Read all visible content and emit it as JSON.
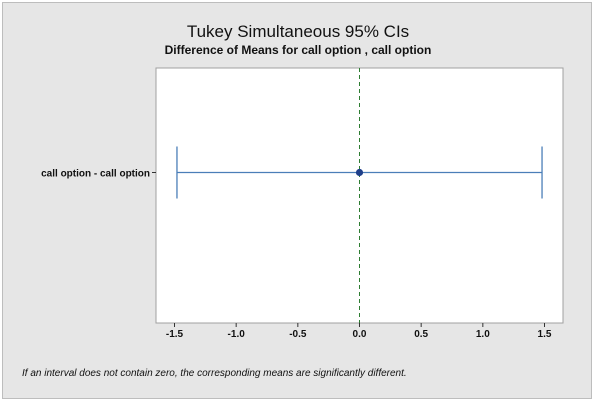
{
  "chart_data": {
    "type": "interval",
    "title": "Tukey Simultaneous 95% CIs",
    "subtitle": "Difference of Means for call option , call option",
    "categories": [
      "call option  - call option"
    ],
    "intervals": [
      {
        "category": "call option  - call option",
        "estimate": 0.0,
        "lower": -1.48,
        "upper": 1.48
      }
    ],
    "xlim": [
      -1.65,
      1.65
    ],
    "xticks": [
      -1.5,
      -1.0,
      -0.5,
      0.0,
      0.5,
      1.0,
      1.5
    ],
    "xtick_labels": [
      "-1.5",
      "-1.0",
      "-0.5",
      "0.0",
      "0.5",
      "1.0",
      "1.5"
    ],
    "reference_line": 0.0,
    "footnote": "If an interval does not contain zero, the corresponding means are significantly different.",
    "colors": {
      "interval": "#4a7eb8",
      "point": "#1f3f8a",
      "reference": "#2e7d32",
      "frame_bg": "#e6e6e6"
    }
  }
}
